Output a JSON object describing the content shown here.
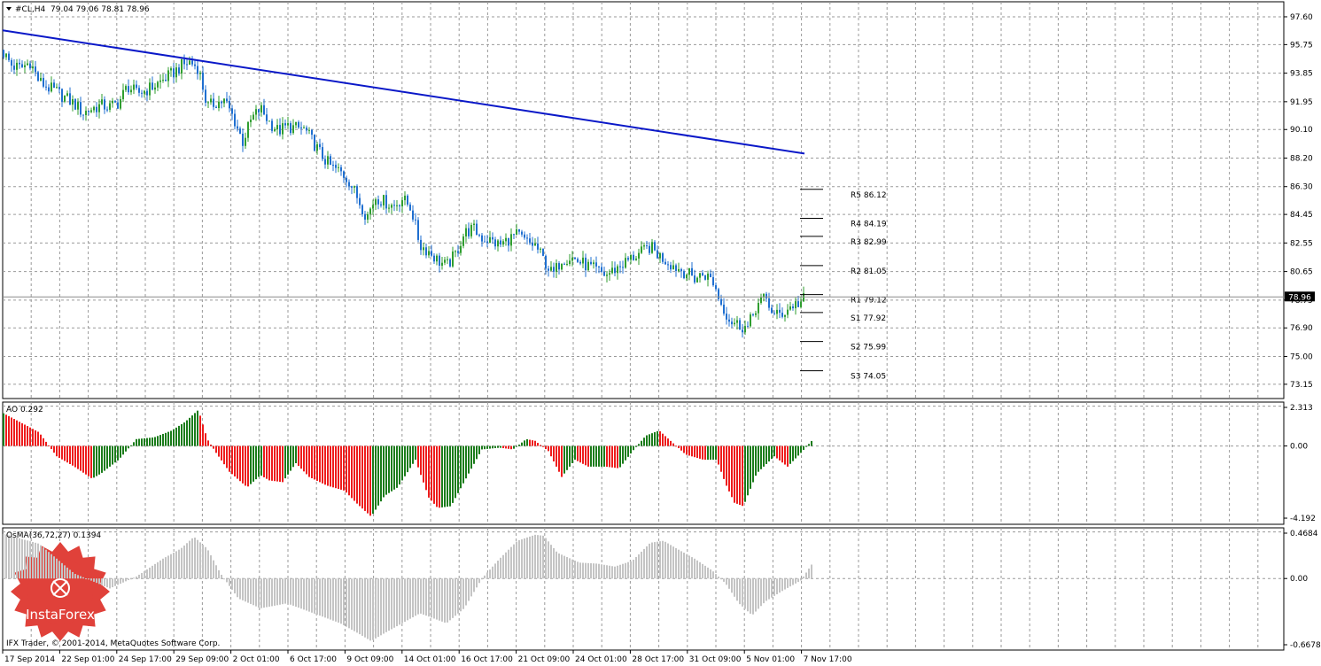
{
  "header": {
    "symbol_label": "#CL,H4",
    "ohlc": "79.04 79.06 78.81 78.96"
  },
  "footer": {
    "copyright": "IFX Trader, © 2001-2014, MetaQuotes Software Corp."
  },
  "watermark": {
    "brand": "InstaForex",
    "color": "#e0413a"
  },
  "colors": {
    "candle_up": "#2f9e2f",
    "candle_down": "#1f6fd0",
    "trendline": "#0a18c8",
    "ao_up": "#1b7c1b",
    "ao_down": "#ee1c1c",
    "osma": "#c4c4c4",
    "grid": "#9a9a9a"
  },
  "chart_data": [
    {
      "type": "candlestick",
      "title": "#CL,H4",
      "ylim": [
        72.2,
        98.6
      ],
      "y_ticks": [
        "97.60",
        "95.75",
        "93.85",
        "91.95",
        "90.10",
        "88.20",
        "86.30",
        "84.45",
        "82.55",
        "80.65",
        "78.75",
        "76.90",
        "75.00",
        "73.15"
      ],
      "x_ticks": [
        "17 Sep 2014",
        "22 Sep 01:00",
        "24 Sep 17:00",
        "29 Sep 09:00",
        "2 Oct 01:00",
        "6 Oct 17:00",
        "9 Oct 09:00",
        "14 Oct 01:00",
        "16 Oct 17:00",
        "21 Oct 09:00",
        "24 Oct 01:00",
        "28 Oct 17:00",
        "31 Oct 09:00",
        "5 Nov 01:00",
        "7 Nov 17:00"
      ],
      "current_price": "78.96",
      "close_path": [
        [
          0,
          95.2
        ],
        [
          10,
          94.3
        ],
        [
          20,
          94.2
        ],
        [
          30,
          94.6
        ],
        [
          40,
          93.3
        ],
        [
          50,
          92.9
        ],
        [
          60,
          92.6
        ],
        [
          70,
          92.2
        ],
        [
          80,
          91.8
        ],
        [
          90,
          91.2
        ],
        [
          100,
          91.5
        ],
        [
          110,
          91.7
        ],
        [
          120,
          91.6
        ],
        [
          130,
          91.9
        ],
        [
          140,
          93.0
        ],
        [
          150,
          92.5
        ],
        [
          160,
          92.7
        ],
        [
          170,
          93.0
        ],
        [
          180,
          93.4
        ],
        [
          190,
          93.8
        ],
        [
          200,
          94.3
        ],
        [
          210,
          94.6
        ],
        [
          220,
          94.2
        ],
        [
          230,
          91.6
        ],
        [
          240,
          91.9
        ],
        [
          250,
          92.0
        ],
        [
          260,
          90.8
        ],
        [
          270,
          89.3
        ],
        [
          280,
          90.8
        ],
        [
          290,
          91.5
        ],
        [
          300,
          90.6
        ],
        [
          310,
          90.0
        ],
        [
          320,
          90.3
        ],
        [
          330,
          90.2
        ],
        [
          340,
          90.1
        ],
        [
          350,
          89.2
        ],
        [
          360,
          88.3
        ],
        [
          370,
          87.6
        ],
        [
          380,
          87.3
        ],
        [
          390,
          86.7
        ],
        [
          400,
          85.5
        ],
        [
          410,
          84.3
        ],
        [
          420,
          85.6
        ],
        [
          430,
          85.3
        ],
        [
          440,
          85.0
        ],
        [
          450,
          85.5
        ],
        [
          460,
          84.9
        ],
        [
          470,
          82.4
        ],
        [
          480,
          82.0
        ],
        [
          490,
          81.4
        ],
        [
          500,
          81.0
        ],
        [
          510,
          81.8
        ],
        [
          520,
          83.2
        ],
        [
          530,
          83.5
        ],
        [
          540,
          82.9
        ],
        [
          550,
          82.7
        ],
        [
          560,
          82.4
        ],
        [
          570,
          82.8
        ],
        [
          580,
          83.1
        ],
        [
          590,
          82.6
        ],
        [
          600,
          82.4
        ],
        [
          610,
          81.4
        ],
        [
          620,
          80.4
        ],
        [
          630,
          81.5
        ],
        [
          640,
          81.6
        ],
        [
          650,
          81.3
        ],
        [
          660,
          81.0
        ],
        [
          670,
          80.7
        ],
        [
          680,
          80.4
        ],
        [
          690,
          80.8
        ],
        [
          700,
          81.2
        ],
        [
          710,
          81.6
        ],
        [
          720,
          81.9
        ],
        [
          730,
          82.3
        ],
        [
          740,
          81.7
        ],
        [
          750,
          81.3
        ],
        [
          760,
          80.9
        ],
        [
          770,
          80.6
        ],
        [
          780,
          80.2
        ],
        [
          790,
          80.5
        ],
        [
          800,
          80.1
        ],
        [
          810,
          78.5
        ],
        [
          820,
          77.4
        ],
        [
          830,
          77.1
        ],
        [
          840,
          76.9
        ],
        [
          850,
          78.4
        ],
        [
          860,
          78.9
        ],
        [
          870,
          77.7
        ],
        [
          880,
          77.9
        ],
        [
          890,
          78.4
        ],
        [
          900,
          78.6
        ],
        [
          905,
          78.96
        ]
      ],
      "trendline": {
        "start": [
          0,
          96.7
        ],
        "end": [
          905,
          88.5
        ]
      },
      "pivot_levels": [
        {
          "name": "R5",
          "value": 86.12,
          "label": "R5 86.12"
        },
        {
          "name": "R4",
          "value": 84.19,
          "label": "R4 84.19"
        },
        {
          "name": "R3",
          "value": 82.99,
          "label": "R3 82.99"
        },
        {
          "name": "R2",
          "value": 81.05,
          "label": "R2 81.05"
        },
        {
          "name": "R1",
          "value": 79.12,
          "label": "R1 79.12"
        },
        {
          "name": "S1",
          "value": 77.92,
          "label": "S1 77.92"
        },
        {
          "name": "S2",
          "value": 75.99,
          "label": "S2 75.99"
        },
        {
          "name": "S3",
          "value": 74.05,
          "label": "S3 74.05"
        }
      ]
    },
    {
      "type": "histogram",
      "title": "AO 0.292",
      "ylim": [
        -4.55,
        2.55
      ],
      "y_ticks": [
        "2.313",
        "0.00",
        "-4.192"
      ],
      "values_path": [
        [
          0,
          1.9
        ],
        [
          40,
          0.8
        ],
        [
          60,
          -0.6
        ],
        [
          80,
          -1.2
        ],
        [
          100,
          -1.9
        ],
        [
          110,
          -1.6
        ],
        [
          130,
          -0.8
        ],
        [
          150,
          0.4
        ],
        [
          170,
          0.5
        ],
        [
          190,
          0.9
        ],
        [
          205,
          1.4
        ],
        [
          220,
          2.1
        ],
        [
          230,
          0.4
        ],
        [
          240,
          -0.4
        ],
        [
          255,
          -1.5
        ],
        [
          275,
          -2.4
        ],
        [
          290,
          -1.7
        ],
        [
          300,
          -2.0
        ],
        [
          315,
          -2.1
        ],
        [
          330,
          -1.0
        ],
        [
          345,
          -1.8
        ],
        [
          365,
          -2.3
        ],
        [
          385,
          -2.6
        ],
        [
          400,
          -3.4
        ],
        [
          415,
          -4.1
        ],
        [
          430,
          -2.9
        ],
        [
          445,
          -2.4
        ],
        [
          465,
          -0.8
        ],
        [
          480,
          -3.0
        ],
        [
          490,
          -3.6
        ],
        [
          505,
          -3.5
        ],
        [
          525,
          -1.6
        ],
        [
          540,
          -0.2
        ],
        [
          560,
          -0.1
        ],
        [
          575,
          -0.2
        ],
        [
          590,
          0.4
        ],
        [
          600,
          0.3
        ],
        [
          615,
          -0.3
        ],
        [
          630,
          -1.8
        ],
        [
          645,
          -0.8
        ],
        [
          660,
          -1.2
        ],
        [
          680,
          -1.2
        ],
        [
          695,
          -1.3
        ],
        [
          710,
          -0.3
        ],
        [
          725,
          0.6
        ],
        [
          740,
          0.9
        ],
        [
          755,
          0.2
        ],
        [
          770,
          -0.5
        ],
        [
          790,
          -0.8
        ],
        [
          805,
          -0.8
        ],
        [
          815,
          -2.2
        ],
        [
          825,
          -3.3
        ],
        [
          835,
          -3.5
        ],
        [
          850,
          -1.6
        ],
        [
          870,
          -0.6
        ],
        [
          885,
          -1.2
        ],
        [
          900,
          -0.4
        ],
        [
          912,
          0.29
        ]
      ]
    },
    {
      "type": "histogram",
      "title": "OsMA(36,72,27) 0.1394",
      "ylim": [
        -0.72,
        0.51
      ],
      "y_ticks": [
        "0.4684",
        "0.00",
        "-0.6678"
      ],
      "values_path": [
        [
          0,
          0.45
        ],
        [
          40,
          0.35
        ],
        [
          80,
          0.05
        ],
        [
          120,
          -0.1
        ],
        [
          150,
          0.02
        ],
        [
          180,
          0.2
        ],
        [
          200,
          0.3
        ],
        [
          215,
          0.42
        ],
        [
          230,
          0.3
        ],
        [
          245,
          0.05
        ],
        [
          265,
          -0.2
        ],
        [
          290,
          -0.3
        ],
        [
          320,
          -0.25
        ],
        [
          350,
          -0.35
        ],
        [
          380,
          -0.45
        ],
        [
          400,
          -0.55
        ],
        [
          415,
          -0.63
        ],
        [
          430,
          -0.55
        ],
        [
          450,
          -0.45
        ],
        [
          470,
          -0.35
        ],
        [
          500,
          -0.45
        ],
        [
          520,
          -0.3
        ],
        [
          540,
          0.0
        ],
        [
          560,
          0.2
        ],
        [
          580,
          0.38
        ],
        [
          600,
          0.44
        ],
        [
          610,
          0.43
        ],
        [
          625,
          0.26
        ],
        [
          650,
          0.16
        ],
        [
          670,
          0.15
        ],
        [
          690,
          0.12
        ],
        [
          710,
          0.18
        ],
        [
          730,
          0.36
        ],
        [
          745,
          0.38
        ],
        [
          760,
          0.3
        ],
        [
          780,
          0.2
        ],
        [
          800,
          0.08
        ],
        [
          815,
          -0.05
        ],
        [
          830,
          -0.25
        ],
        [
          845,
          -0.37
        ],
        [
          860,
          -0.23
        ],
        [
          880,
          -0.12
        ],
        [
          900,
          -0.02
        ],
        [
          912,
          0.14
        ]
      ]
    }
  ]
}
